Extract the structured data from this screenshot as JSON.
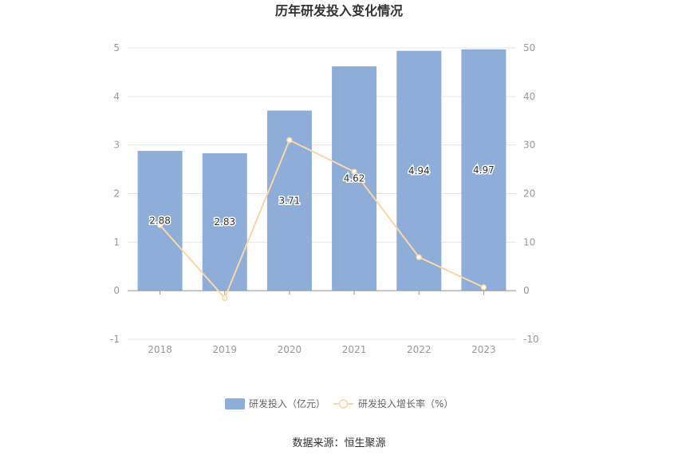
{
  "chart_data": {
    "type": "bar",
    "title": "历年研发投入变化情况",
    "categories": [
      "2018",
      "2019",
      "2020",
      "2021",
      "2022",
      "2023"
    ],
    "series": [
      {
        "name": "研发投入（亿元）",
        "type": "bar",
        "axis": "left",
        "color": "#8eadd9",
        "values": [
          2.88,
          2.83,
          3.71,
          4.62,
          4.94,
          4.97
        ],
        "labels": [
          "2.88",
          "2.83",
          "3.71",
          "4.62",
          "4.94",
          "4.97"
        ]
      },
      {
        "name": "研发投入增长率（%）",
        "type": "line",
        "axis": "right",
        "color": "#f8d8a5",
        "values": [
          13.5,
          -1.5,
          31.0,
          24.5,
          6.9,
          0.7
        ]
      }
    ],
    "yaxis_left": {
      "min": -1,
      "max": 5,
      "ticks": [
        "-1",
        "0",
        "1",
        "2",
        "3",
        "4",
        "5"
      ]
    },
    "yaxis_right": {
      "min": -10,
      "max": 50,
      "ticks": [
        "-10",
        "0",
        "10",
        "20",
        "30",
        "40",
        "50"
      ]
    },
    "grid": true,
    "legend_position": "bottom",
    "source": "数据来源：恒生聚源"
  }
}
